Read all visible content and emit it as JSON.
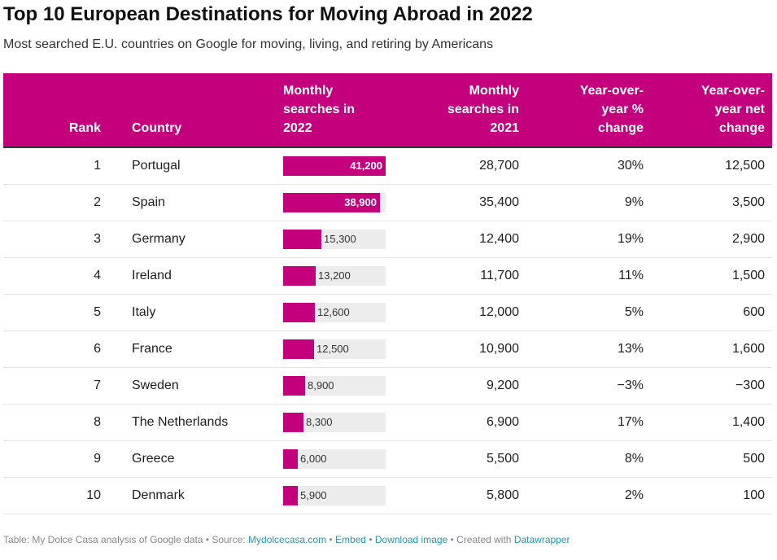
{
  "title": "Top 10 European Destinations for Moving Abroad in 2022",
  "subtitle": "Most searched E.U. countries on Google for moving, living, and retiring by Americans",
  "colors": {
    "accent": "#c5007c",
    "bar_bg": "#ececec",
    "link": "#1f9ab6"
  },
  "headers": {
    "rank": "Rank",
    "country": "Country",
    "s2022": [
      "Monthly",
      "searches in",
      "2022"
    ],
    "s2021": [
      "Monthly",
      "searches in",
      "2021"
    ],
    "yoy_pct": [
      "Year-over-",
      "year %",
      "change"
    ],
    "yoy_net": [
      "Year-over-",
      "year net",
      "change"
    ]
  },
  "rows": [
    {
      "rank": "1",
      "country": "Portugal",
      "s2022_label": "41,200",
      "s2021": "28,700",
      "yoy_pct": "30%",
      "yoy_net": "12,500"
    },
    {
      "rank": "2",
      "country": "Spain",
      "s2022_label": "38,900",
      "s2021": "35,400",
      "yoy_pct": "9%",
      "yoy_net": "3,500"
    },
    {
      "rank": "3",
      "country": "Germany",
      "s2022_label": "15,300",
      "s2021": "12,400",
      "yoy_pct": "19%",
      "yoy_net": "2,900"
    },
    {
      "rank": "4",
      "country": "Ireland",
      "s2022_label": "13,200",
      "s2021": "11,700",
      "yoy_pct": "11%",
      "yoy_net": "1,500"
    },
    {
      "rank": "5",
      "country": "Italy",
      "s2022_label": "12,600",
      "s2021": "12,000",
      "yoy_pct": "5%",
      "yoy_net": "600"
    },
    {
      "rank": "6",
      "country": "France",
      "s2022_label": "12,500",
      "s2021": "10,900",
      "yoy_pct": "13%",
      "yoy_net": "1,600"
    },
    {
      "rank": "7",
      "country": "Sweden",
      "s2022_label": "8,900",
      "s2021": "9,200",
      "yoy_pct": "−3%",
      "yoy_net": "−300"
    },
    {
      "rank": "8",
      "country": "The Netherlands",
      "s2022_label": "8,300",
      "s2021": "6,900",
      "yoy_pct": "17%",
      "yoy_net": "1,400"
    },
    {
      "rank": "9",
      "country": "Greece",
      "s2022_label": "6,000",
      "s2021": "5,500",
      "yoy_pct": "8%",
      "yoy_net": "500"
    },
    {
      "rank": "10",
      "country": "Denmark",
      "s2022_label": "5,900",
      "s2021": "5,800",
      "yoy_pct": "2%",
      "yoy_net": "100"
    }
  ],
  "chart_data": {
    "type": "table",
    "title": "Top 10 European Destinations for Moving Abroad in 2022",
    "subtitle": "Most searched E.U. countries on Google for moving, living, and retiring by Americans",
    "columns": [
      "Rank",
      "Country",
      "Monthly searches in 2022",
      "Monthly searches in 2021",
      "Year-over-year % change",
      "Year-over-year net change"
    ],
    "categories": [
      "Portugal",
      "Spain",
      "Germany",
      "Ireland",
      "Italy",
      "France",
      "Sweden",
      "The Netherlands",
      "Greece",
      "Denmark"
    ],
    "bar_column": "Monthly searches in 2022",
    "bar_max": 41200,
    "series": [
      {
        "name": "Monthly searches in 2022",
        "values": [
          41200,
          38900,
          15300,
          13200,
          12600,
          12500,
          8900,
          8300,
          6000,
          5900
        ]
      },
      {
        "name": "Monthly searches in 2021",
        "values": [
          28700,
          35400,
          12400,
          11700,
          12000,
          10900,
          9200,
          6900,
          5500,
          5800
        ]
      },
      {
        "name": "Year-over-year % change",
        "values": [
          30,
          9,
          19,
          11,
          5,
          13,
          -3,
          17,
          8,
          2
        ]
      },
      {
        "name": "Year-over-year net change",
        "values": [
          12500,
          3500,
          2900,
          1500,
          600,
          1600,
          -300,
          1400,
          500,
          100
        ]
      }
    ]
  },
  "footer": {
    "prefix": "Table: My Dolce Casa analysis of Google data • Source: ",
    "source_link": "Mydolcecasa.com",
    "sep1": " • ",
    "embed": "Embed",
    "sep2": " • ",
    "download": "Download image",
    "created": " • Created with ",
    "datawrapper": "Datawrapper"
  }
}
